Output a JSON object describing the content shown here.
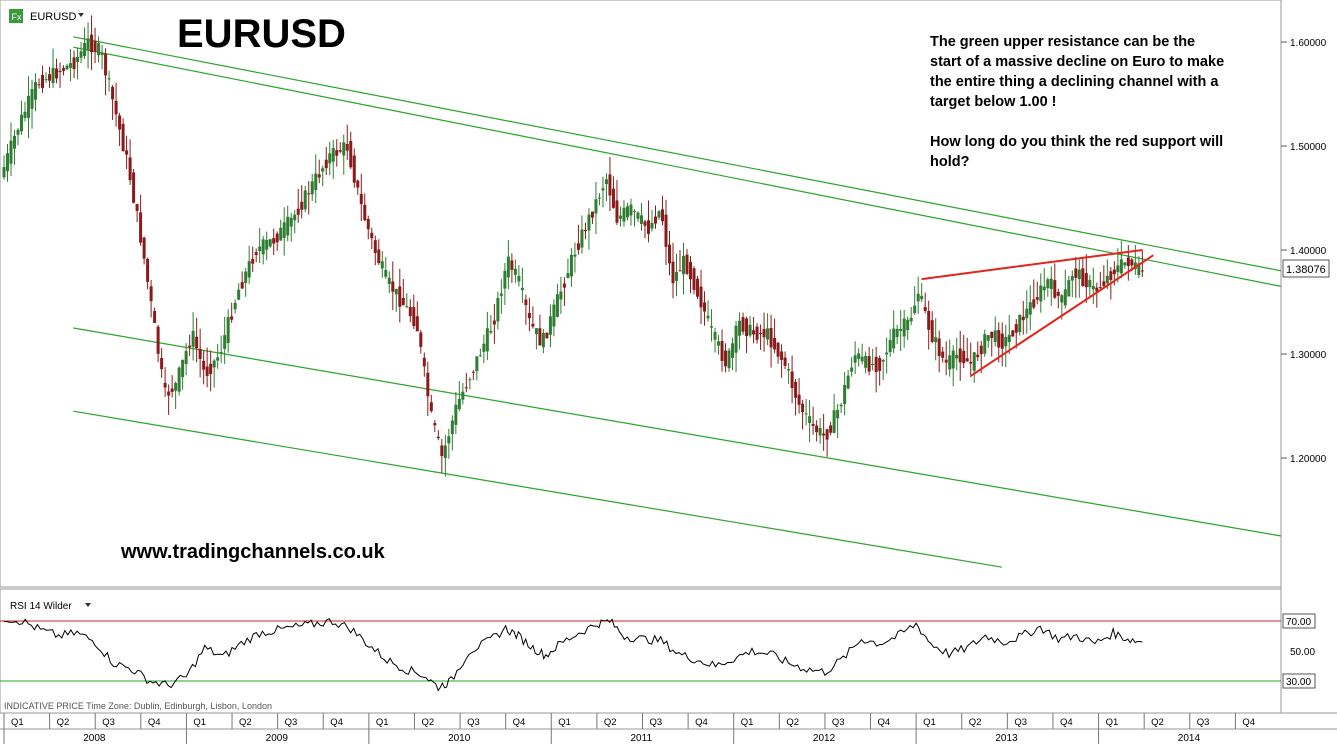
{
  "header": {
    "symbol_badge": "Fx",
    "symbol": "EURUSD",
    "dropdown_icon": "caret-down-icon"
  },
  "chart_title": "EURUSD",
  "annotation": {
    "lines": [
      "The green upper resistance can be the",
      "start of a massive decline on Euro to make",
      "the entire thing a declining channel with a",
      "target below 1.00 !",
      "",
      "How long do you think the red support will",
      "hold?"
    ]
  },
  "watermark": "www.tradingchannels.co.uk",
  "footer_info": "INDICATIVE PRICE   Time Zone: Dublin, Edinburgh, Lisbon, London",
  "indicator": {
    "label": "RSI 14 Wilder",
    "dropdown_icon": "caret-down-icon",
    "upper_level": "70.00",
    "lower_level": "30.00"
  },
  "last_price": "1.38076",
  "colors": {
    "up_candle": "#2e7d32",
    "down_candle": "#8b1a1a",
    "channel_green": "#2aa52a",
    "support_red": "#e3241b",
    "rsi_line": "#000000"
  },
  "chart_data": {
    "type": "candlestick",
    "symbol": "EURUSD",
    "price_axis": {
      "ticks": [
        1.2,
        1.3,
        1.4,
        1.5,
        1.6
      ],
      "tick_labels": [
        "1.20000",
        "1.30000",
        "1.40000",
        "1.50000",
        "1.60000"
      ],
      "range": [
        1.1,
        1.65
      ]
    },
    "time_axis": {
      "quarters": [
        "Q1",
        "Q2",
        "Q3",
        "Q4",
        "Q1",
        "Q2",
        "Q3",
        "Q4",
        "Q1",
        "Q2",
        "Q3",
        "Q4",
        "Q1",
        "Q2",
        "Q3",
        "Q4",
        "Q1",
        "Q2",
        "Q3",
        "Q4",
        "Q1",
        "Q2",
        "Q3",
        "Q4",
        "Q1",
        "Q2",
        "Q3",
        "Q4"
      ],
      "years": [
        "2008",
        "2009",
        "2010",
        "2011",
        "2012",
        "2013",
        "2014"
      ]
    },
    "price_series": [
      [
        2008.0,
        1.47
      ],
      [
        2008.1,
        1.52
      ],
      [
        2008.2,
        1.56
      ],
      [
        2008.3,
        1.57
      ],
      [
        2008.4,
        1.58
      ],
      [
        2008.48,
        1.6
      ],
      [
        2008.55,
        1.59
      ],
      [
        2008.62,
        1.54
      ],
      [
        2008.7,
        1.48
      ],
      [
        2008.78,
        1.4
      ],
      [
        2008.84,
        1.33
      ],
      [
        2008.9,
        1.26
      ],
      [
        2008.96,
        1.27
      ],
      [
        2009.05,
        1.32
      ],
      [
        2009.12,
        1.28
      ],
      [
        2009.2,
        1.3
      ],
      [
        2009.3,
        1.36
      ],
      [
        2009.4,
        1.4
      ],
      [
        2009.5,
        1.41
      ],
      [
        2009.6,
        1.43
      ],
      [
        2009.7,
        1.46
      ],
      [
        2009.8,
        1.49
      ],
      [
        2009.9,
        1.5
      ],
      [
        2009.98,
        1.44
      ],
      [
        2010.05,
        1.4
      ],
      [
        2010.12,
        1.37
      ],
      [
        2010.2,
        1.35
      ],
      [
        2010.28,
        1.33
      ],
      [
        2010.36,
        1.24
      ],
      [
        2010.42,
        1.2
      ],
      [
        2010.5,
        1.25
      ],
      [
        2010.6,
        1.29
      ],
      [
        2010.7,
        1.33
      ],
      [
        2010.78,
        1.39
      ],
      [
        2010.84,
        1.37
      ],
      [
        2010.9,
        1.33
      ],
      [
        2010.97,
        1.31
      ],
      [
        2011.05,
        1.35
      ],
      [
        2011.15,
        1.4
      ],
      [
        2011.25,
        1.44
      ],
      [
        2011.32,
        1.47
      ],
      [
        2011.38,
        1.43
      ],
      [
        2011.45,
        1.44
      ],
      [
        2011.55,
        1.42
      ],
      [
        2011.62,
        1.44
      ],
      [
        2011.68,
        1.37
      ],
      [
        2011.75,
        1.39
      ],
      [
        2011.82,
        1.36
      ],
      [
        2011.9,
        1.32
      ],
      [
        2011.98,
        1.29
      ],
      [
        2012.05,
        1.33
      ],
      [
        2012.12,
        1.32
      ],
      [
        2012.2,
        1.32
      ],
      [
        2012.3,
        1.29
      ],
      [
        2012.38,
        1.25
      ],
      [
        2012.45,
        1.23
      ],
      [
        2012.52,
        1.22
      ],
      [
        2012.6,
        1.25
      ],
      [
        2012.68,
        1.3
      ],
      [
        2012.75,
        1.29
      ],
      [
        2012.82,
        1.29
      ],
      [
        2012.9,
        1.32
      ],
      [
        2012.98,
        1.33
      ],
      [
        2013.03,
        1.36
      ],
      [
        2013.1,
        1.32
      ],
      [
        2013.18,
        1.29
      ],
      [
        2013.25,
        1.3
      ],
      [
        2013.32,
        1.29
      ],
      [
        2013.42,
        1.32
      ],
      [
        2013.5,
        1.31
      ],
      [
        2013.58,
        1.33
      ],
      [
        2013.66,
        1.35
      ],
      [
        2013.74,
        1.37
      ],
      [
        2013.82,
        1.35
      ],
      [
        2013.88,
        1.38
      ],
      [
        2013.95,
        1.37
      ],
      [
        2014.0,
        1.36
      ],
      [
        2014.1,
        1.38
      ],
      [
        2014.18,
        1.39
      ],
      [
        2014.24,
        1.38
      ]
    ],
    "rsi_series": [
      [
        2008.0,
        72
      ],
      [
        2008.1,
        70
      ],
      [
        2008.2,
        64
      ],
      [
        2008.3,
        60
      ],
      [
        2008.4,
        62
      ],
      [
        2008.5,
        56
      ],
      [
        2008.6,
        42
      ],
      [
        2008.7,
        38
      ],
      [
        2008.8,
        30
      ],
      [
        2008.9,
        27
      ],
      [
        2009.0,
        33
      ],
      [
        2009.1,
        52
      ],
      [
        2009.2,
        46
      ],
      [
        2009.3,
        55
      ],
      [
        2009.4,
        62
      ],
      [
        2009.5,
        64
      ],
      [
        2009.6,
        66
      ],
      [
        2009.7,
        68
      ],
      [
        2009.8,
        70
      ],
      [
        2009.9,
        65
      ],
      [
        2010.0,
        54
      ],
      [
        2010.1,
        44
      ],
      [
        2010.2,
        38
      ],
      [
        2010.3,
        34
      ],
      [
        2010.38,
        26
      ],
      [
        2010.45,
        30
      ],
      [
        2010.55,
        50
      ],
      [
        2010.65,
        56
      ],
      [
        2010.75,
        65
      ],
      [
        2010.82,
        60
      ],
      [
        2010.9,
        52
      ],
      [
        2010.97,
        47
      ],
      [
        2011.05,
        55
      ],
      [
        2011.15,
        62
      ],
      [
        2011.25,
        68
      ],
      [
        2011.32,
        70
      ],
      [
        2011.4,
        60
      ],
      [
        2011.5,
        58
      ],
      [
        2011.6,
        57
      ],
      [
        2011.7,
        48
      ],
      [
        2011.8,
        44
      ],
      [
        2011.9,
        40
      ],
      [
        2012.0,
        45
      ],
      [
        2012.1,
        50
      ],
      [
        2012.2,
        48
      ],
      [
        2012.3,
        42
      ],
      [
        2012.4,
        38
      ],
      [
        2012.5,
        36
      ],
      [
        2012.6,
        45
      ],
      [
        2012.7,
        58
      ],
      [
        2012.8,
        55
      ],
      [
        2012.9,
        60
      ],
      [
        2013.0,
        68
      ],
      [
        2013.08,
        55
      ],
      [
        2013.18,
        48
      ],
      [
        2013.28,
        52
      ],
      [
        2013.38,
        60
      ],
      [
        2013.48,
        56
      ],
      [
        2013.58,
        60
      ],
      [
        2013.68,
        66
      ],
      [
        2013.78,
        58
      ],
      [
        2013.88,
        60
      ],
      [
        2013.98,
        55
      ],
      [
        2014.08,
        62
      ],
      [
        2014.16,
        58
      ],
      [
        2014.24,
        56
      ]
    ],
    "rsi_levels": [
      30,
      70
    ],
    "green_channel_lines": [
      {
        "from": [
          2008.38,
          1.605
        ],
        "to": [
          2015.0,
          1.38
        ]
      },
      {
        "from": [
          2008.38,
          1.595
        ],
        "to": [
          2015.0,
          1.365
        ]
      },
      {
        "from": [
          2008.38,
          1.325
        ],
        "to": [
          2015.0,
          1.125
        ]
      },
      {
        "from": [
          2008.38,
          1.245
        ],
        "to": [
          2013.47,
          1.095
        ]
      }
    ],
    "red_support_lines": [
      {
        "from": [
          2013.03,
          1.372
        ],
        "to": [
          2014.24,
          1.4
        ]
      },
      {
        "from": [
          2013.3,
          1.279
        ],
        "to": [
          2014.3,
          1.395
        ]
      }
    ],
    "grid": false
  }
}
